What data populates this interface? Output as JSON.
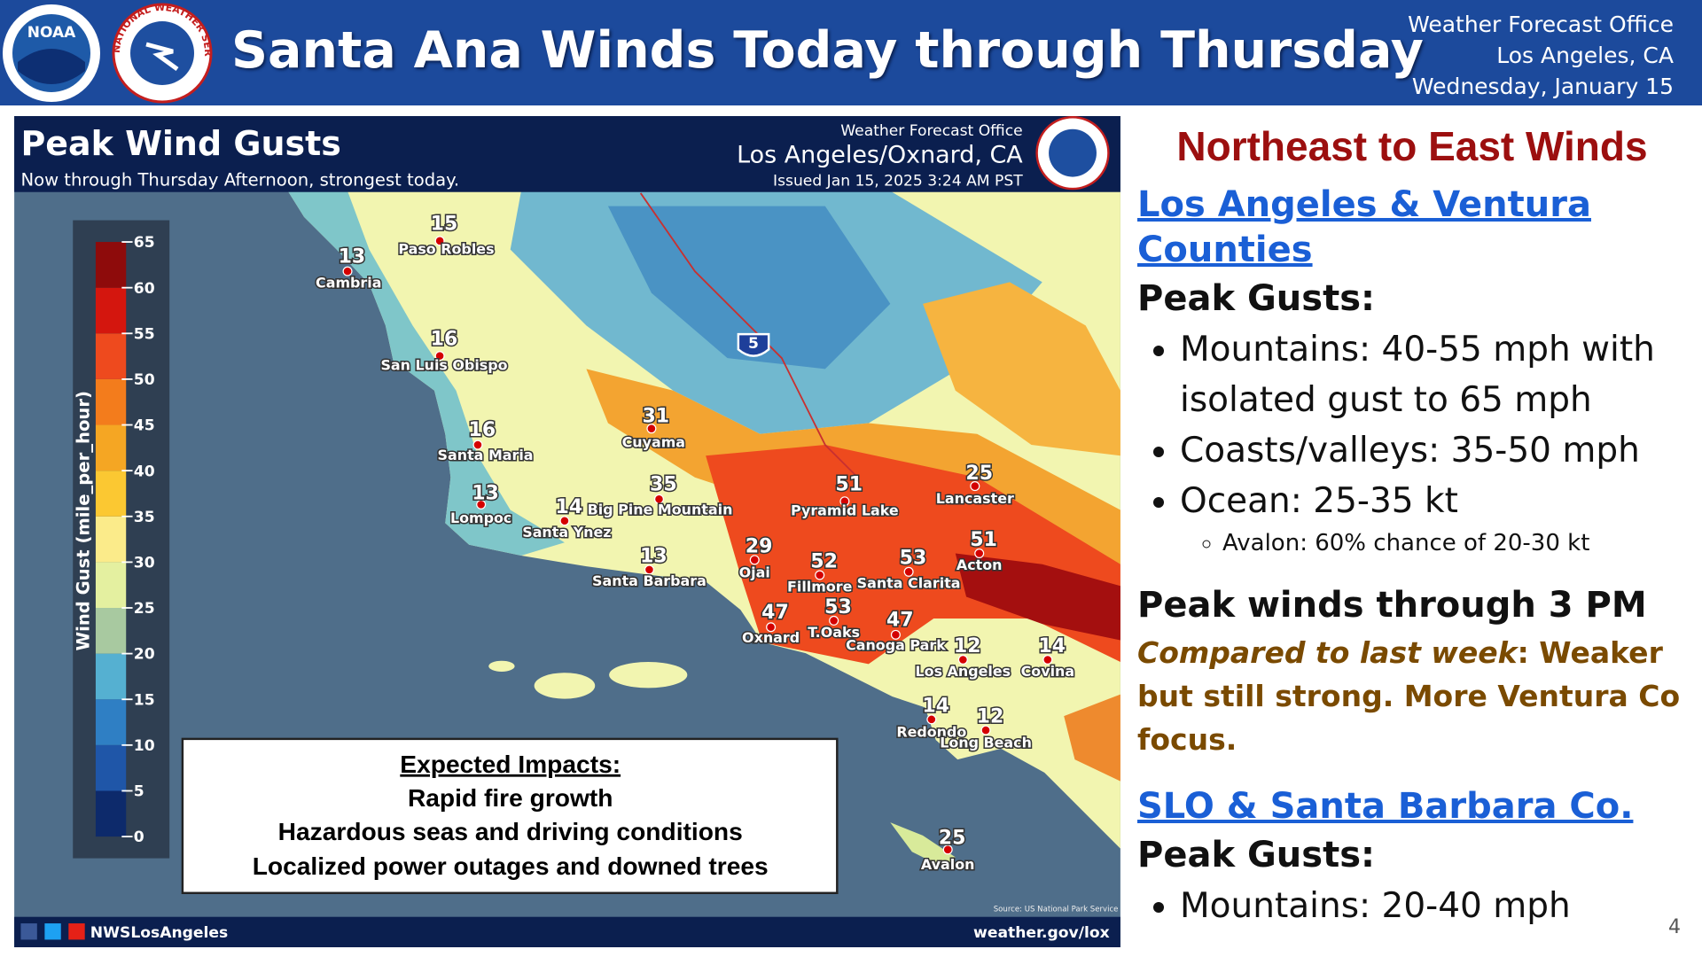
{
  "header": {
    "logos": [
      "NOAA",
      "NATIONAL WEATHER SERVICE"
    ],
    "title": "Santa Ana Winds Today through Thursday",
    "office": [
      "Weather Forecast Office",
      "Los Angeles, CA",
      "Wednesday, January 15"
    ]
  },
  "map": {
    "title": "Peak Wind Gusts",
    "subtitle": "Now through Thursday Afternoon, strongest today.",
    "office": "Weather Forecast Office",
    "location": "Los Angeles/Oxnard, CA",
    "issued": "Issued Jan 15, 2025 3:24 AM PST",
    "legend": {
      "label": "Wind Gust (mile_per_hour)",
      "ticks": [
        0,
        5,
        10,
        15,
        20,
        25,
        30,
        35,
        40,
        45,
        50,
        55,
        60,
        65
      ]
    },
    "interstate": "5",
    "stations": [
      {
        "name": "Paso Robles",
        "value": 15
      },
      {
        "name": "Cambria",
        "value": 13
      },
      {
        "name": "San Luis Obispo",
        "value": 16
      },
      {
        "name": "Santa Maria",
        "value": 16
      },
      {
        "name": "Cuyama",
        "value": 31
      },
      {
        "name": "Lompoc",
        "value": 13
      },
      {
        "name": "Santa Ynez",
        "value": 14
      },
      {
        "name": "Big Pine Mountain",
        "value": 35
      },
      {
        "name": "Santa Barbara",
        "value": 13
      },
      {
        "name": "Ojai",
        "value": 29
      },
      {
        "name": "Pyramid Lake",
        "value": 51
      },
      {
        "name": "Lancaster",
        "value": 25
      },
      {
        "name": "Acton",
        "value": 51
      },
      {
        "name": "Fillmore",
        "value": 52
      },
      {
        "name": "Santa Clarita",
        "value": 53
      },
      {
        "name": "Oxnard",
        "value": 47
      },
      {
        "name": "T.Oaks",
        "value": 53
      },
      {
        "name": "Canoga Park",
        "value": 47
      },
      {
        "name": "Los Angeles",
        "value": 12
      },
      {
        "name": "Covina",
        "value": 14
      },
      {
        "name": "Redondo",
        "value": 14
      },
      {
        "name": "Long Beach",
        "value": 12
      },
      {
        "name": "Avalon",
        "value": 25
      }
    ],
    "impacts": {
      "heading": "Expected Impacts:",
      "items": [
        "Rapid fire growth",
        "Hazardous seas and driving conditions",
        "Localized power outages and downed trees"
      ]
    },
    "social": "NWSLosAngeles",
    "website": "weather.gov/lox",
    "source": "Source: US National Park Service"
  },
  "panel": {
    "heading": "Northeast to East Winds",
    "section1": {
      "link": "Los Angeles & Ventura Counties",
      "label": "Peak Gusts:",
      "bullets": [
        "Mountains: 40-55 mph with isolated gust to 65 mph",
        "Coasts/valleys: 35-50 mph",
        "Ocean: 25-35 kt"
      ],
      "sub": "Avalon: 60% chance of 20-30 kt"
    },
    "peak": "Peak winds through 3 PM",
    "compare_label": "Compared to last week",
    "compare_text": ": Weaker but still strong. More Ventura Co focus.",
    "section2": {
      "link": "SLO & Santa Barbara Co.",
      "label": "Peak Gusts:",
      "bullets": [
        "Mountains: 20-40 mph"
      ]
    }
  },
  "page_number": "4"
}
